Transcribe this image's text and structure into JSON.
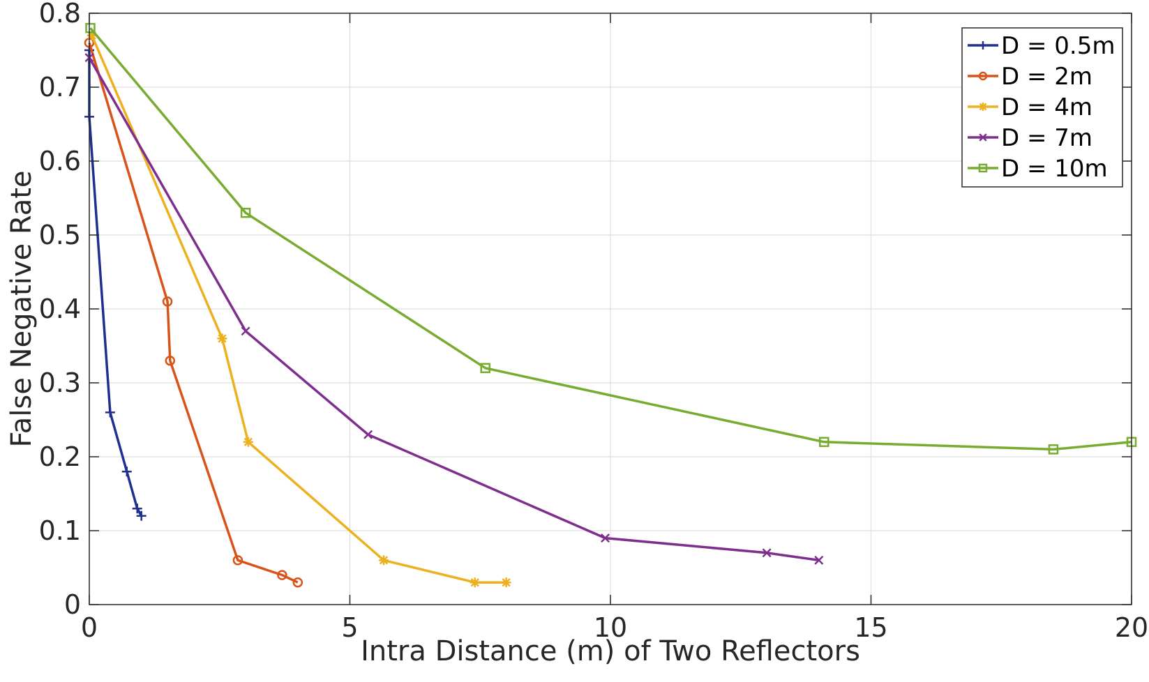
{
  "chart_data": {
    "type": "line",
    "title": "",
    "xlabel": "Intra Distance (m) of Two Reflectors",
    "ylabel": "False Negative Rate",
    "xlim": [
      0,
      20
    ],
    "ylim": [
      0,
      0.8
    ],
    "xticks": [
      0,
      5,
      10,
      15,
      20
    ],
    "xtick_labels": [
      "0",
      "5",
      "10",
      "15",
      "20"
    ],
    "yticks": [
      0,
      0.1,
      0.2,
      0.3,
      0.4,
      0.5,
      0.6,
      0.7,
      0.8
    ],
    "ytick_labels": [
      "0",
      "0.1",
      "0.2",
      "0.3",
      "0.4",
      "0.5",
      "0.6",
      "0.7",
      "0.8"
    ],
    "grid": true,
    "legend_position": "top-right",
    "series": [
      {
        "name": "D = 0.5m",
        "color": "#1f2f8f",
        "marker": "plus",
        "x": [
          0.0,
          0.0,
          0.4,
          0.72,
          0.92,
          1.0
        ],
        "y": [
          0.75,
          0.66,
          0.26,
          0.18,
          0.13,
          0.12
        ]
      },
      {
        "name": "D = 2m",
        "color": "#d95319",
        "marker": "circle",
        "x": [
          0.0,
          1.5,
          1.55,
          2.85,
          3.7,
          4.0
        ],
        "y": [
          0.76,
          0.41,
          0.33,
          0.06,
          0.04,
          0.03
        ]
      },
      {
        "name": "D = 4m",
        "color": "#edb120",
        "marker": "asterisk",
        "x": [
          0.05,
          2.55,
          3.05,
          5.65,
          7.4,
          8.0
        ],
        "y": [
          0.77,
          0.36,
          0.22,
          0.06,
          0.03,
          0.03
        ]
      },
      {
        "name": "D = 7m",
        "color": "#7e2f8e",
        "marker": "x",
        "x": [
          0.0,
          3.0,
          5.35,
          9.9,
          13.0,
          14.0
        ],
        "y": [
          0.74,
          0.37,
          0.23,
          0.09,
          0.07,
          0.06
        ]
      },
      {
        "name": "D = 10m",
        "color": "#77ac30",
        "marker": "square",
        "x": [
          0.02,
          3.0,
          7.6,
          14.1,
          18.5,
          20.0
        ],
        "y": [
          0.78,
          0.53,
          0.32,
          0.22,
          0.21,
          0.22
        ]
      }
    ]
  }
}
